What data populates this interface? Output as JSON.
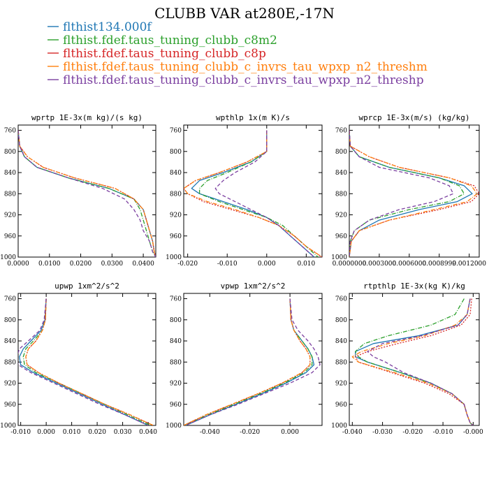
{
  "figure": {
    "title": "CLUBB VAR at280E,-17N"
  },
  "legend": [
    {
      "label": "flthist134.000f",
      "color": "#1f77b4",
      "dash": "solid"
    },
    {
      "label": "flthist.fdef.taus_tuning_clubb_c8m2",
      "color": "#2ca02c",
      "dash": "dashdot"
    },
    {
      "label": "flthist.fdef.taus_tuning_clubb_c8p",
      "color": "#d62728",
      "dash": "dot"
    },
    {
      "label": "flthist.fdef.taus_tuning_clubb_c_invrs_tau_wpxp_n2_threshm",
      "color": "#ff7f0e",
      "dash": "dashdot"
    },
    {
      "label": "flthist.fdef.taus_tuning_clubb_c_invrs_tau_wpxp_n2_threshp",
      "color": "#7b3fa0",
      "dash": "dash"
    }
  ],
  "chart_data": [
    {
      "type": "line",
      "title": "wprtp  1E-3x(m kg)/(s kg)",
      "xlim": [
        0.0,
        0.044
      ],
      "ylim": [
        1000,
        750
      ],
      "xticks": [
        "0.0000",
        "0.0100",
        "0.0200",
        "0.0300",
        "0.0400"
      ],
      "xtick_values": [
        0.0,
        0.01,
        0.02,
        0.03,
        0.04
      ],
      "yticks": [
        "760",
        "800",
        "840",
        "880",
        "920",
        "960",
        "1000"
      ],
      "ytick_values": [
        760,
        800,
        840,
        880,
        920,
        960,
        1000
      ],
      "y": [
        760,
        790,
        810,
        830,
        850,
        870,
        890,
        910,
        930,
        950,
        970,
        990,
        1000
      ],
      "series": [
        {
          "values": [
            0.0,
            0.0005,
            0.002,
            0.006,
            0.016,
            0.029,
            0.037,
            0.04,
            0.041,
            0.042,
            0.043,
            0.0435,
            0.044
          ]
        },
        {
          "values": [
            0.0,
            0.0005,
            0.002,
            0.006,
            0.016,
            0.029,
            0.037,
            0.039,
            0.04,
            0.041,
            0.042,
            0.043,
            0.044
          ]
        },
        {
          "values": [
            0.0,
            0.0005,
            0.003,
            0.008,
            0.018,
            0.031,
            0.037,
            0.04,
            0.041,
            0.042,
            0.043,
            0.0435,
            0.044
          ]
        },
        {
          "values": [
            0.0,
            0.0005,
            0.003,
            0.008,
            0.018,
            0.031,
            0.037,
            0.04,
            0.041,
            0.042,
            0.043,
            0.0435,
            0.044
          ]
        },
        {
          "values": [
            0.0,
            0.0005,
            0.002,
            0.006,
            0.016,
            0.027,
            0.034,
            0.037,
            0.039,
            0.04,
            0.042,
            0.043,
            0.044
          ]
        }
      ]
    },
    {
      "type": "line",
      "title": "wpthlp  1x(m K)/s",
      "xlim": [
        -0.021,
        0.014
      ],
      "ylim": [
        1000,
        750
      ],
      "xticks": [
        "-0.020",
        "-0.010",
        "0.000",
        "0.010"
      ],
      "xtick_values": [
        -0.02,
        -0.01,
        0.0,
        0.01
      ],
      "yticks": [
        "760",
        "800",
        "840",
        "880",
        "920",
        "960",
        "1000"
      ],
      "ytick_values": [
        760,
        800,
        840,
        880,
        920,
        960,
        1000
      ],
      "y": [
        760,
        800,
        820,
        840,
        855,
        870,
        880,
        895,
        910,
        925,
        940,
        960,
        980,
        1000
      ],
      "series": [
        {
          "values": [
            0.0,
            0.0,
            -0.004,
            -0.011,
            -0.017,
            -0.019,
            -0.017,
            -0.011,
            -0.005,
            0.0,
            0.003,
            0.006,
            0.009,
            0.012
          ]
        },
        {
          "values": [
            0.0,
            0.0,
            -0.004,
            -0.01,
            -0.015,
            -0.017,
            -0.017,
            -0.012,
            -0.006,
            0.0,
            0.004,
            0.007,
            0.01,
            0.013
          ]
        },
        {
          "values": [
            0.0,
            0.0,
            -0.005,
            -0.012,
            -0.018,
            -0.021,
            -0.02,
            -0.016,
            -0.009,
            -0.002,
            0.003,
            0.007,
            0.01,
            0.014
          ]
        },
        {
          "values": [
            0.0,
            0.0,
            -0.005,
            -0.012,
            -0.018,
            -0.021,
            -0.02,
            -0.015,
            -0.008,
            -0.002,
            0.003,
            0.007,
            0.01,
            0.014
          ]
        },
        {
          "values": [
            0.0,
            0.0,
            -0.003,
            -0.008,
            -0.011,
            -0.013,
            -0.012,
            -0.008,
            -0.004,
            0.0,
            0.003,
            0.006,
            0.009,
            0.012
          ]
        }
      ]
    },
    {
      "type": "line",
      "title": "wprcp  1E-3x(m/s) (kg/kg)",
      "xlim": [
        0.0,
        0.0013
      ],
      "ylim": [
        1000,
        750
      ],
      "xticks": [
        "0.0000000",
        "0.0003000",
        "0.0006000",
        "0.0008999",
        "0.0012000"
      ],
      "xtick_values": [
        0.0,
        0.0003,
        0.0006,
        0.0009,
        0.0012
      ],
      "yticks": [
        "760",
        "800",
        "840",
        "880",
        "920",
        "960",
        "1000"
      ],
      "ytick_values": [
        760,
        800,
        840,
        880,
        920,
        960,
        1000
      ],
      "y": [
        760,
        790,
        810,
        830,
        850,
        865,
        880,
        895,
        910,
        930,
        950,
        970,
        1000
      ],
      "series": [
        {
          "values": [
            0.0,
            1e-05,
            0.0001,
            0.0004,
            0.0009,
            0.00115,
            0.00123,
            0.00108,
            0.0007,
            0.0003,
            0.0001,
            2e-05,
            0.0
          ]
        },
        {
          "values": [
            0.0,
            1e-05,
            0.0001,
            0.0004,
            0.0009,
            0.0011,
            0.00115,
            0.001,
            0.0006,
            0.0002,
            5e-05,
            1e-05,
            0.0
          ]
        },
        {
          "values": [
            0.0,
            1e-05,
            0.0002,
            0.0005,
            0.001,
            0.00125,
            0.0013,
            0.00122,
            0.0009,
            0.0004,
            0.0001,
            2e-05,
            0.0
          ]
        },
        {
          "values": [
            0.0,
            1e-05,
            0.0002,
            0.0005,
            0.001,
            0.00122,
            0.00128,
            0.00118,
            0.00085,
            0.0004,
            0.0001,
            2e-05,
            0.0
          ]
        },
        {
          "values": [
            0.0,
            1e-05,
            0.0001,
            0.0003,
            0.0008,
            0.001,
            0.00104,
            0.00085,
            0.0005,
            0.0002,
            5e-05,
            1e-05,
            0.0
          ]
        }
      ]
    },
    {
      "type": "line",
      "title": "upwp  1xm^2/s^2",
      "xlim": [
        -0.011,
        0.043
      ],
      "ylim": [
        1000,
        750
      ],
      "xticks": [
        "-0.010",
        "0.000",
        "0.010",
        "0.020",
        "0.030",
        "0.040"
      ],
      "xtick_values": [
        -0.01,
        0.0,
        0.01,
        0.02,
        0.03,
        0.04
      ],
      "yticks": [
        "760",
        "800",
        "840",
        "880",
        "920",
        "960",
        "1000"
      ],
      "ytick_values": [
        760,
        800,
        840,
        880,
        920,
        960,
        1000
      ],
      "y": [
        760,
        800,
        820,
        840,
        855,
        870,
        885,
        900,
        920,
        940,
        960,
        980,
        1000
      ],
      "series": [
        {
          "values": [
            0.0,
            -0.0005,
            -0.002,
            -0.006,
            -0.009,
            -0.0105,
            -0.01,
            -0.005,
            0.004,
            0.013,
            0.022,
            0.031,
            0.04
          ]
        },
        {
          "values": [
            0.0,
            -0.0003,
            -0.0015,
            -0.005,
            -0.008,
            -0.009,
            -0.0085,
            -0.004,
            0.005,
            0.014,
            0.023,
            0.032,
            0.041
          ]
        },
        {
          "values": [
            0.0,
            -0.0003,
            -0.0015,
            -0.004,
            -0.007,
            -0.008,
            -0.0075,
            -0.003,
            0.005,
            0.014,
            0.023,
            0.033,
            0.042
          ]
        },
        {
          "values": [
            0.0,
            -0.0003,
            -0.0015,
            -0.004,
            -0.007,
            -0.008,
            -0.0075,
            -0.003,
            0.005,
            0.014,
            0.023,
            0.033,
            0.042
          ]
        },
        {
          "values": [
            0.0,
            -0.0008,
            -0.0025,
            -0.007,
            -0.0105,
            -0.0115,
            -0.011,
            -0.006,
            0.003,
            0.012,
            0.021,
            0.031,
            0.04
          ]
        }
      ]
    },
    {
      "type": "line",
      "title": "vpwp  1xm^2/s^2",
      "xlim": [
        -0.053,
        0.016
      ],
      "ylim": [
        1000,
        750
      ],
      "xticks": [
        "-0.040",
        "-0.020",
        "0.000"
      ],
      "xtick_values": [
        -0.04,
        -0.02,
        0.0
      ],
      "yticks": [
        "760",
        "800",
        "840",
        "880",
        "920",
        "960",
        "1000"
      ],
      "ytick_values": [
        760,
        800,
        840,
        880,
        920,
        960,
        1000
      ],
      "y": [
        760,
        800,
        820,
        840,
        855,
        870,
        885,
        900,
        920,
        940,
        960,
        980,
        1000
      ],
      "series": [
        {
          "values": [
            0.0,
            0.0005,
            0.002,
            0.006,
            0.009,
            0.011,
            0.012,
            0.008,
            -0.002,
            -0.014,
            -0.027,
            -0.04,
            -0.052
          ]
        },
        {
          "values": [
            0.0,
            0.0005,
            0.002,
            0.006,
            0.009,
            0.011,
            0.011,
            0.007,
            -0.003,
            -0.015,
            -0.028,
            -0.041,
            -0.053
          ]
        },
        {
          "values": [
            0.0,
            0.0005,
            0.002,
            0.005,
            0.008,
            0.01,
            0.01,
            0.006,
            -0.004,
            -0.016,
            -0.029,
            -0.042,
            -0.053
          ]
        },
        {
          "values": [
            0.0,
            0.0005,
            0.002,
            0.005,
            0.008,
            0.01,
            0.01,
            0.006,
            -0.004,
            -0.016,
            -0.029,
            -0.042,
            -0.053
          ]
        },
        {
          "values": [
            0.0,
            0.001,
            0.004,
            0.009,
            0.012,
            0.014,
            0.015,
            0.011,
            0.0,
            -0.013,
            -0.026,
            -0.04,
            -0.052
          ]
        }
      ]
    },
    {
      "type": "line",
      "title": "rtpthlp  1E-3x(kg K)/kg",
      "xlim": [
        -0.041,
        0.002
      ],
      "ylim": [
        1000,
        750
      ],
      "xticks": [
        "-0.040",
        "-0.030",
        "-0.020",
        "-0.010",
        "-0.000"
      ],
      "xtick_values": [
        -0.04,
        -0.03,
        -0.02,
        -0.01,
        0.0
      ],
      "yticks": [
        "760",
        "800",
        "840",
        "880",
        "920",
        "960",
        "1000"
      ],
      "ytick_values": [
        760,
        800,
        840,
        880,
        920,
        960,
        1000
      ],
      "y": [
        760,
        790,
        810,
        830,
        845,
        860,
        870,
        880,
        900,
        920,
        940,
        960,
        980,
        995,
        1000
      ],
      "series": [
        {
          "values": [
            -0.001,
            -0.002,
            -0.005,
            -0.018,
            -0.033,
            -0.039,
            -0.039,
            -0.035,
            -0.024,
            -0.014,
            -0.007,
            -0.003,
            -0.002,
            -0.001,
            0.0
          ]
        },
        {
          "values": [
            -0.003,
            -0.006,
            -0.014,
            -0.028,
            -0.036,
            -0.039,
            -0.038,
            -0.035,
            -0.024,
            -0.014,
            -0.007,
            -0.003,
            -0.002,
            -0.001,
            0.0
          ]
        },
        {
          "values": [
            -0.0005,
            -0.001,
            -0.004,
            -0.014,
            -0.025,
            -0.035,
            -0.039,
            -0.038,
            -0.027,
            -0.016,
            -0.008,
            -0.003,
            -0.002,
            -0.001,
            0.0
          ]
        },
        {
          "values": [
            -0.001,
            -0.002,
            -0.006,
            -0.016,
            -0.028,
            -0.037,
            -0.04,
            -0.038,
            -0.026,
            -0.015,
            -0.007,
            -0.003,
            -0.002,
            -0.001,
            0.0
          ]
        },
        {
          "values": [
            -0.001,
            -0.002,
            -0.005,
            -0.017,
            -0.03,
            -0.035,
            -0.033,
            -0.029,
            -0.023,
            -0.014,
            -0.007,
            -0.003,
            -0.002,
            -0.001,
            0.0
          ]
        }
      ]
    }
  ]
}
